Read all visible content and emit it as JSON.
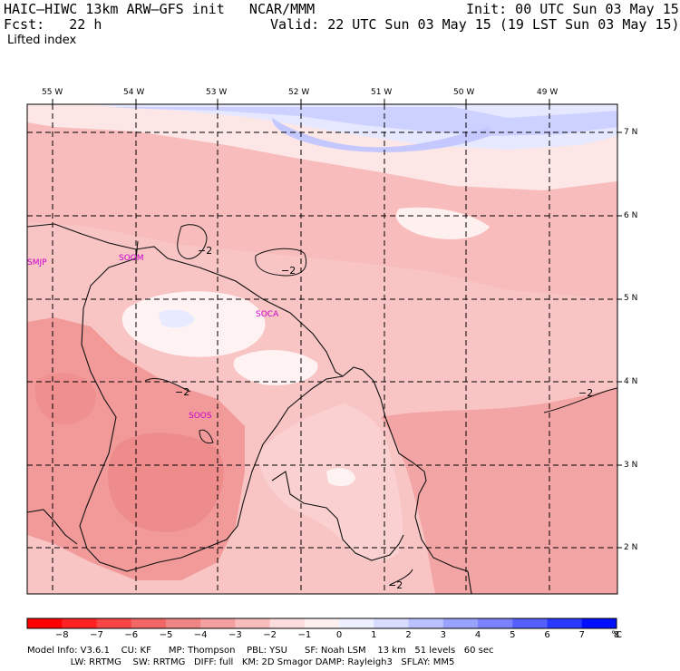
{
  "header": {
    "model_line": "HAIC–HIWC 13km ARW–GFS init   NCAR/MMM",
    "fcst_line": "Fcst:   22 h",
    "init_line": "Init: 00 UTC Sun 03 May 15",
    "valid_line": "Valid: 22 UTC Sun 03 May 15 (19 LST Sun 03 May 15)",
    "field_name": "Lifted index"
  },
  "map": {
    "lon_labels": [
      "55 W",
      "54 W",
      "53 W",
      "52 W",
      "51 W",
      "50 W",
      "49 W"
    ],
    "lat_labels": [
      "7 N",
      "6 N",
      "5 N",
      "4 N",
      "3 N",
      "2 N"
    ],
    "stations": [
      "SMJP",
      "SOGM",
      "SOCA",
      "SOOS"
    ],
    "contour_labels": [
      "−2",
      "−2",
      "−2",
      "−2",
      "−2"
    ]
  },
  "colorbar": {
    "ticks": [
      "−8",
      "−7",
      "−6",
      "−5",
      "−4",
      "−3",
      "−2",
      "−1",
      "0",
      "1",
      "2",
      "3",
      "4",
      "5",
      "6",
      "7",
      "8"
    ],
    "unit": "°C",
    "colors": [
      "#ff0000",
      "#ff2222",
      "#f74444",
      "#f36666",
      "#ef8585",
      "#f4a0a0",
      "#f8bebe",
      "#fcdcdc",
      "#fff0f0",
      "#eef0ff",
      "#d8dcff",
      "#bcc2ff",
      "#9aa2ff",
      "#7a82ff",
      "#5560ff",
      "#2a38ff",
      "#0010ff"
    ]
  },
  "footer": {
    "line1": "Model Info: V3.6.1    CU: KF      MP: Thompson    PBL: YSU      SF: Noah LSM    13 km   51 levels   60 sec",
    "line2": "               LW: RRTMG    SW: RRTMG   DIFF: full   KM: 2D Smagor DAMP: Rayleigh3   SFLAY: MM5"
  }
}
